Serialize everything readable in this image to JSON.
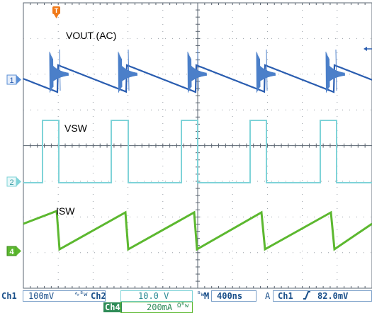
{
  "traces": [
    {
      "id": "1",
      "label": "VOUT (AC)",
      "color": "#2a5db0",
      "marker_color": "#5a8fd6"
    },
    {
      "id": "2",
      "label": "VSW",
      "color": "#7fd3d8",
      "marker_color": "#7fd3d8"
    },
    {
      "id": "4",
      "label": "ISW",
      "color": "#5cb82f",
      "marker_color": "#5cb82f"
    }
  ],
  "trigger_marker": "T",
  "status": {
    "ch1_name": "Ch1",
    "ch1_scale": "100mV",
    "ch1_coupling_icon": "∿ᴮw",
    "ch2_name": "Ch2",
    "ch2_scale": "10.0 V",
    "ch2_coupling_icon": "ᴮw",
    "timebase_label": "M",
    "timebase_value": "400ns",
    "trigger_mode": "A",
    "trigger_source": "Ch1",
    "trigger_slope_icon": "rising-edge",
    "trigger_level": "82.0mV",
    "ch4_name": "Ch4",
    "ch4_scale": "200mA",
    "ch4_coupling_icon": "Ωᴮw"
  },
  "colors": {
    "grid": "#9aa0a8",
    "frame": "#5a6470",
    "status_text": "#1a4f8a",
    "ch4_box": "#2e8b57"
  }
}
